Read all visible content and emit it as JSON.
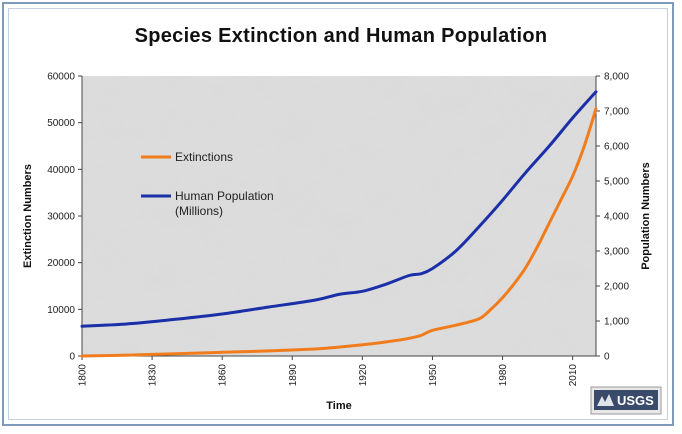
{
  "colors": {
    "extinctions": "#f07c1c",
    "population": "#1a2fa8",
    "frame": "#7f9ab8",
    "plot_background": "#d9d9d9"
  },
  "logo": {
    "text": "USGS",
    "icon": "usgs-logo"
  },
  "chart_data": {
    "type": "line",
    "title": "Species Extinction and Human Population",
    "xlabel": "Time",
    "ylabel_left": "Extinction Numbers",
    "ylabel_right": "Population Numbers",
    "xlim": [
      1800,
      2020
    ],
    "ylim_left": [
      0,
      60000
    ],
    "ylim_right": [
      0,
      8000
    ],
    "x_ticks": [
      "1800",
      "1830",
      "1860",
      "1890",
      "1920",
      "1950",
      "1980",
      "2010"
    ],
    "y_left_ticks": [
      "0",
      "10000",
      "20000",
      "30000",
      "40000",
      "50000",
      "60000"
    ],
    "y_right_ticks": [
      "0",
      "1,000",
      "2,000",
      "3,000",
      "4,000",
      "5,000",
      "6,000",
      "7,000",
      "8,000"
    ],
    "grid": false,
    "legend_position": "upper-left inside plot",
    "series": [
      {
        "name": "Extinctions",
        "axis": "left",
        "x": [
          1800,
          1820,
          1840,
          1860,
          1880,
          1900,
          1910,
          1920,
          1930,
          1940,
          1945,
          1950,
          1960,
          1970,
          1975,
          1980,
          1985,
          1990,
          1995,
          2000,
          2005,
          2010,
          2015,
          2020
        ],
        "values": [
          0,
          200,
          500,
          800,
          1100,
          1500,
          1900,
          2400,
          3000,
          3800,
          4400,
          5500,
          6600,
          8000,
          10000,
          12500,
          15500,
          19000,
          23500,
          28500,
          33500,
          38500,
          45000,
          53000
        ]
      },
      {
        "name": "Human Population (Millions)",
        "axis": "right",
        "x": [
          1800,
          1820,
          1840,
          1860,
          1880,
          1900,
          1910,
          1920,
          1930,
          1940,
          1945,
          1950,
          1960,
          1970,
          1980,
          1990,
          2000,
          2010,
          2020
        ],
        "values": [
          850,
          920,
          1050,
          1200,
          1400,
          1600,
          1760,
          1850,
          2050,
          2300,
          2350,
          2500,
          3000,
          3700,
          4450,
          5250,
          6000,
          6800,
          7550
        ]
      }
    ]
  }
}
